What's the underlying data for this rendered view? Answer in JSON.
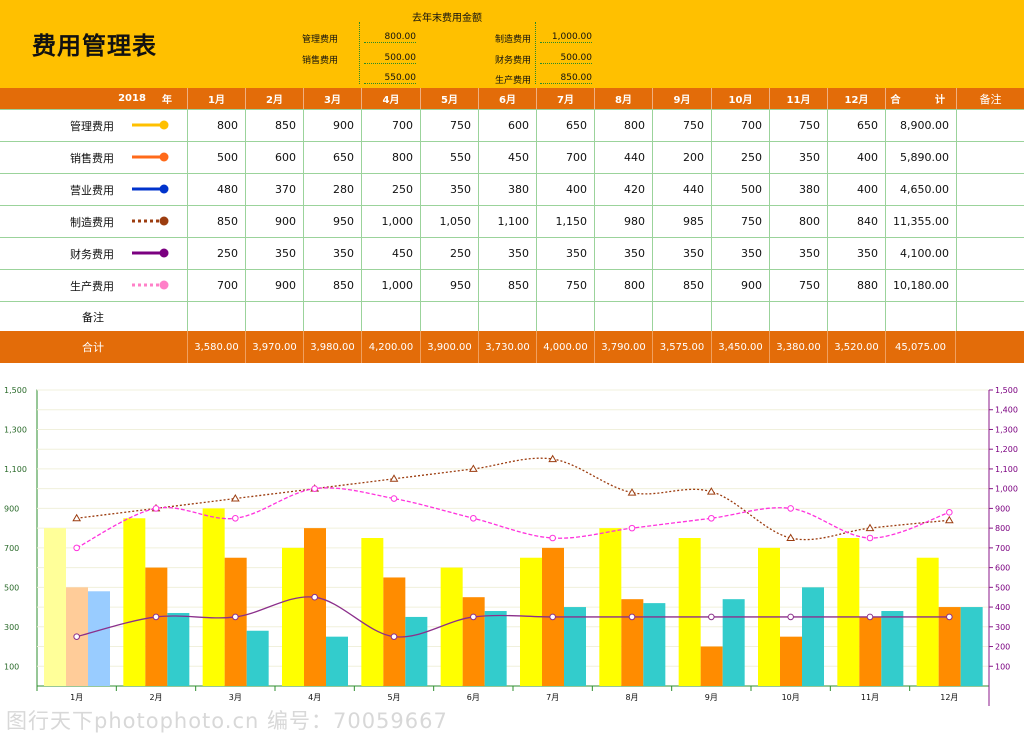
{
  "title": "费用管理表",
  "last_year": {
    "heading": "去年末费用金额",
    "items": [
      {
        "label": "管理费用",
        "value": "800.00"
      },
      {
        "label": "销售费用",
        "value": "500.00"
      },
      {
        "label": "",
        "value": "550.00"
      },
      {
        "label": "制造费用",
        "value": "1,000.00"
      },
      {
        "label": "财务费用",
        "value": "500.00"
      },
      {
        "label": "生产费用",
        "value": "850.00"
      }
    ]
  },
  "table": {
    "year": "2018",
    "year_unit": "年",
    "months": [
      "1月",
      "2月",
      "3月",
      "4月",
      "5月",
      "6月",
      "7月",
      "8月",
      "9月",
      "10月",
      "11月",
      "12月"
    ],
    "total_header_left": "合",
    "total_header_right": "计",
    "remark_header": "备注",
    "rows": [
      {
        "label": "管理费用",
        "color": "#ffc000",
        "style": "solid",
        "values": [
          "800",
          "850",
          "900",
          "700",
          "750",
          "600",
          "650",
          "800",
          "750",
          "700",
          "750",
          "650"
        ],
        "total": "8,900.00"
      },
      {
        "label": "销售费用",
        "color": "#ff6a1a",
        "style": "solid",
        "values": [
          "500",
          "600",
          "650",
          "800",
          "550",
          "450",
          "700",
          "440",
          "200",
          "250",
          "350",
          "400"
        ],
        "total": "5,890.00"
      },
      {
        "label": "营业费用",
        "color": "#0033cc",
        "style": "solid",
        "values": [
          "480",
          "370",
          "280",
          "250",
          "350",
          "380",
          "400",
          "420",
          "440",
          "500",
          "380",
          "400"
        ],
        "total": "4,650.00"
      },
      {
        "label": "制造费用",
        "color": "#9c3d10",
        "style": "dotted",
        "values": [
          "850",
          "900",
          "950",
          "1,000",
          "1,050",
          "1,100",
          "1,150",
          "980",
          "985",
          "750",
          "800",
          "840"
        ],
        "total": "11,355.00"
      },
      {
        "label": "财务费用",
        "color": "#7b0080",
        "style": "solid",
        "values": [
          "250",
          "350",
          "350",
          "450",
          "250",
          "350",
          "350",
          "350",
          "350",
          "350",
          "350",
          "350"
        ],
        "total": "4,100.00"
      },
      {
        "label": "生产费用",
        "color": "#ff80c8",
        "style": "dotted",
        "values": [
          "700",
          "900",
          "850",
          "1,000",
          "950",
          "850",
          "750",
          "800",
          "850",
          "900",
          "750",
          "880"
        ],
        "total": "10,180.00"
      }
    ],
    "remark_row_label": "备注",
    "total_row_label": "合计",
    "column_totals": [
      "3,580.00",
      "3,970.00",
      "3,980.00",
      "4,200.00",
      "3,900.00",
      "3,730.00",
      "4,000.00",
      "3,790.00",
      "3,575.00",
      "3,450.00",
      "3,380.00",
      "3,520.00"
    ],
    "grand_total": "45,075.00"
  },
  "chart_data": {
    "type": "bar",
    "categories": [
      "1月",
      "2月",
      "3月",
      "4月",
      "5月",
      "6月",
      "7月",
      "8月",
      "9月",
      "10月",
      "11月",
      "12月"
    ],
    "left_axis": {
      "ticks": [
        "100",
        "300",
        "500",
        "700",
        "900",
        "1,100",
        "1,300",
        "1,500"
      ],
      "range": [
        0,
        1500
      ]
    },
    "right_axis": {
      "ticks": [
        "100",
        "200",
        "300",
        "400",
        "500",
        "600",
        "700",
        "800",
        "900",
        "1,000",
        "1,100",
        "1,200",
        "1,300",
        "1,400",
        "1,500"
      ],
      "range": [
        0,
        1500
      ]
    },
    "grid": true,
    "bar_series": [
      {
        "values": [
          800,
          850,
          900,
          700,
          750,
          600,
          650,
          800,
          750,
          700,
          750,
          650
        ],
        "color": "#ffff00",
        "first_color": "#ffff99"
      },
      {
        "values": [
          500,
          600,
          650,
          800,
          550,
          450,
          700,
          440,
          200,
          250,
          350,
          400
        ],
        "color": "#ff8c00",
        "first_color": "#ffcc99"
      },
      {
        "values": [
          480,
          370,
          280,
          250,
          350,
          380,
          400,
          420,
          440,
          500,
          380,
          400
        ],
        "color": "#33cccc",
        "first_color": "#99ccff"
      }
    ],
    "line_series": [
      {
        "values": [
          850,
          900,
          950,
          1000,
          1050,
          1100,
          1150,
          980,
          985,
          750,
          800,
          840
        ],
        "color": "#9c3d10",
        "dash": "2,2",
        "marker": "triangle"
      },
      {
        "values": [
          250,
          350,
          350,
          450,
          250,
          350,
          350,
          350,
          350,
          350,
          350,
          350
        ],
        "color": "#8b2f8b",
        "dash": "",
        "marker": "circle"
      },
      {
        "values": [
          700,
          900,
          850,
          1000,
          950,
          850,
          750,
          800,
          850,
          900,
          750,
          880
        ],
        "color": "#ff33dd",
        "dash": "4,2",
        "marker": "circle"
      }
    ]
  },
  "watermark": "图行天下photophoto.cn 编号：70059667"
}
